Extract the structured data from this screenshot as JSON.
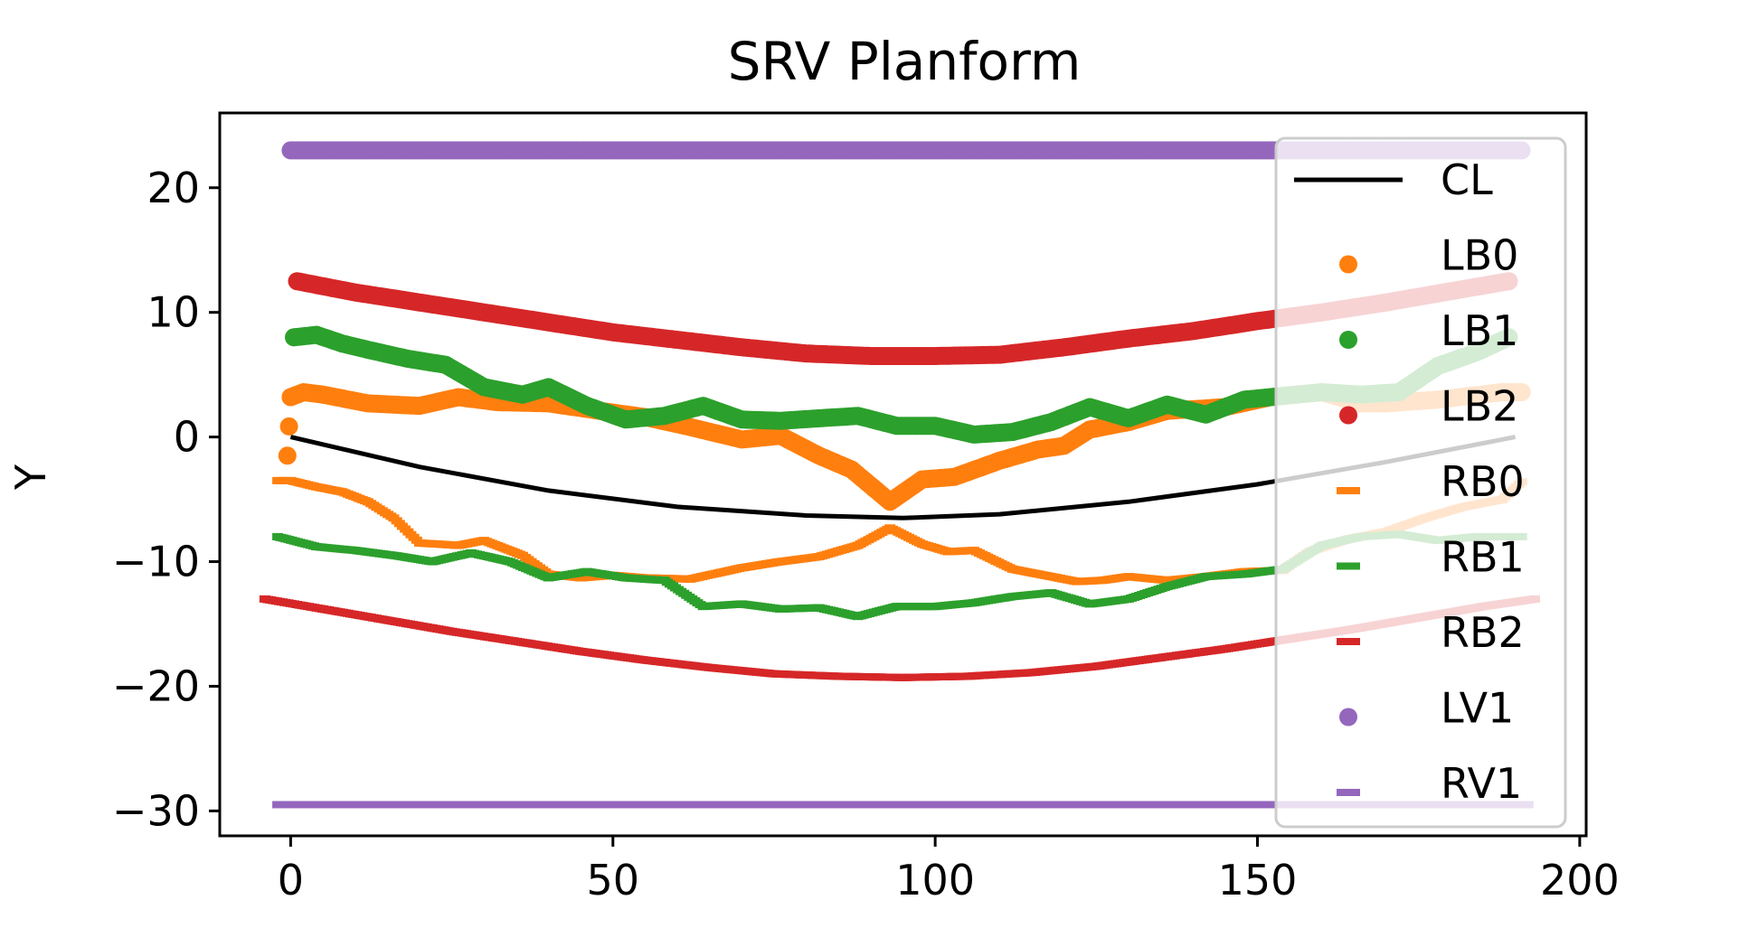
{
  "chart_data": {
    "type": "scatter",
    "title": "SRV Planform",
    "xlabel": "",
    "ylabel": "Y",
    "xlim": [
      -11,
      201
    ],
    "ylim": [
      -32,
      26
    ],
    "xticks": [
      0,
      50,
      100,
      150,
      200
    ],
    "yticks": [
      -30,
      -20,
      -10,
      0,
      10,
      20
    ],
    "xtick_labels": [
      "0",
      "50",
      "100",
      "150",
      "200"
    ],
    "ytick_labels": [
      "−30",
      "−20",
      "−10",
      "0",
      "10",
      "20"
    ],
    "legend_position": "upper right",
    "series": [
      {
        "name": "CL",
        "marker": "line",
        "color": "#000000",
        "x": [
          0,
          20,
          40,
          60,
          80,
          95,
          110,
          130,
          150,
          170,
          190
        ],
        "y": [
          0,
          -2.4,
          -4.3,
          -5.6,
          -6.3,
          -6.5,
          -6.2,
          -5.2,
          -3.8,
          -2.0,
          0
        ]
      },
      {
        "name": "LB0",
        "marker": "dot",
        "color": "#ff7f0e",
        "x": [
          -0.5,
          0,
          2,
          5,
          12,
          20,
          26,
          32,
          40,
          48,
          55,
          62,
          70,
          76,
          82,
          87,
          93,
          98,
          103,
          110,
          116,
          120,
          124,
          130,
          136,
          145,
          152,
          160,
          166,
          170,
          178,
          183,
          188,
          191
        ],
        "y": [
          -1.5,
          3.2,
          3.6,
          3.4,
          2.7,
          2.5,
          3.2,
          2.8,
          2.7,
          2.1,
          1.6,
          0.8,
          -0.2,
          0.1,
          -1.5,
          -2.6,
          -5.2,
          -3.4,
          -3.2,
          -1.9,
          -1.0,
          -0.7,
          0.6,
          1.2,
          2.1,
          2.4,
          3.2,
          3.6,
          2.7,
          2.7,
          3.0,
          3.3,
          3.6,
          3.6
        ]
      },
      {
        "name": "LB1",
        "marker": "dot",
        "color": "#2ca02c",
        "x": [
          0.5,
          4,
          8,
          12,
          18,
          24,
          30,
          36,
          40,
          46,
          52,
          58,
          64,
          70,
          76,
          82,
          88,
          94,
          100,
          106,
          112,
          118,
          124,
          130,
          136,
          142,
          148,
          154,
          160,
          166,
          172,
          178,
          184,
          189
        ],
        "y": [
          8.0,
          8.2,
          7.5,
          7.0,
          6.3,
          5.8,
          4.0,
          3.4,
          4.0,
          2.5,
          1.4,
          1.7,
          2.5,
          1.4,
          1.3,
          1.5,
          1.7,
          0.9,
          0.9,
          0.2,
          0.4,
          1.2,
          2.4,
          1.5,
          2.6,
          1.8,
          3.0,
          3.3,
          3.6,
          3.4,
          3.6,
          5.7,
          6.8,
          8.0
        ]
      },
      {
        "name": "LB2",
        "marker": "dot",
        "color": "#d62728",
        "x": [
          1,
          10,
          20,
          30,
          40,
          50,
          60,
          70,
          80,
          90,
          100,
          110,
          120,
          130,
          140,
          150,
          160,
          170,
          180,
          189
        ],
        "y": [
          12.5,
          11.6,
          10.8,
          10.0,
          9.2,
          8.4,
          7.8,
          7.2,
          6.7,
          6.5,
          6.5,
          6.6,
          7.2,
          7.9,
          8.5,
          9.3,
          10.0,
          10.8,
          11.7,
          12.5
        ]
      },
      {
        "name": "RB0",
        "marker": "hline",
        "color": "#ff7f0e",
        "x": [
          -2,
          0,
          4,
          8,
          12,
          16,
          20,
          26,
          30,
          36,
          40,
          45,
          50,
          55,
          62,
          70,
          76,
          82,
          88,
          93,
          98,
          102,
          106,
          112,
          118,
          122,
          126,
          130,
          136,
          142,
          148,
          154,
          158,
          164,
          170,
          176,
          182,
          188,
          191
        ],
        "y": [
          -3.5,
          -3.5,
          -4.0,
          -4.4,
          -5.2,
          -6.5,
          -8.5,
          -8.7,
          -8.3,
          -9.5,
          -11.0,
          -11.3,
          -11.1,
          -11.3,
          -11.4,
          -10.5,
          -10.0,
          -9.6,
          -8.7,
          -7.3,
          -8.6,
          -9.2,
          -9.1,
          -10.6,
          -11.2,
          -11.6,
          -11.5,
          -11.2,
          -11.5,
          -11.2,
          -10.8,
          -10.7,
          -9.2,
          -8.2,
          -7.6,
          -6.5,
          -5.6,
          -5.0,
          -3.6
        ]
      },
      {
        "name": "RB1",
        "marker": "hline",
        "color": "#2ca02c",
        "x": [
          -2,
          4,
          10,
          16,
          22,
          28,
          34,
          40,
          46,
          52,
          58,
          64,
          70,
          76,
          82,
          88,
          94,
          100,
          106,
          112,
          118,
          124,
          130,
          136,
          142,
          148,
          154,
          160,
          166,
          172,
          178,
          184,
          191
        ],
        "y": [
          -8.0,
          -8.8,
          -9.1,
          -9.5,
          -10.0,
          -9.3,
          -10.0,
          -11.3,
          -10.8,
          -11.3,
          -11.5,
          -13.6,
          -13.4,
          -13.8,
          -13.7,
          -14.4,
          -13.6,
          -13.6,
          -13.3,
          -12.8,
          -12.5,
          -13.4,
          -13.0,
          -12.0,
          -11.2,
          -11.0,
          -10.6,
          -8.7,
          -8.0,
          -7.8,
          -8.3,
          -8.0,
          -8.0
        ]
      },
      {
        "name": "RB2",
        "marker": "hline",
        "color": "#d62728",
        "x": [
          -4,
          5,
          15,
          25,
          35,
          45,
          55,
          65,
          75,
          85,
          95,
          105,
          115,
          125,
          135,
          145,
          155,
          165,
          175,
          185,
          193
        ],
        "y": [
          -13.0,
          -13.8,
          -14.7,
          -15.6,
          -16.4,
          -17.2,
          -17.9,
          -18.5,
          -19.0,
          -19.2,
          -19.3,
          -19.2,
          -18.9,
          -18.4,
          -17.7,
          -17.0,
          -16.2,
          -15.4,
          -14.5,
          -13.6,
          -13.0
        ]
      },
      {
        "name": "LV1",
        "marker": "dot",
        "color": "#9467bd",
        "x": [
          0,
          191
        ],
        "y": [
          23.0,
          23.0
        ]
      },
      {
        "name": "RV1",
        "marker": "hline",
        "color": "#9467bd",
        "x": [
          -2,
          192
        ],
        "y": [
          -29.5,
          -29.5
        ]
      }
    ]
  }
}
